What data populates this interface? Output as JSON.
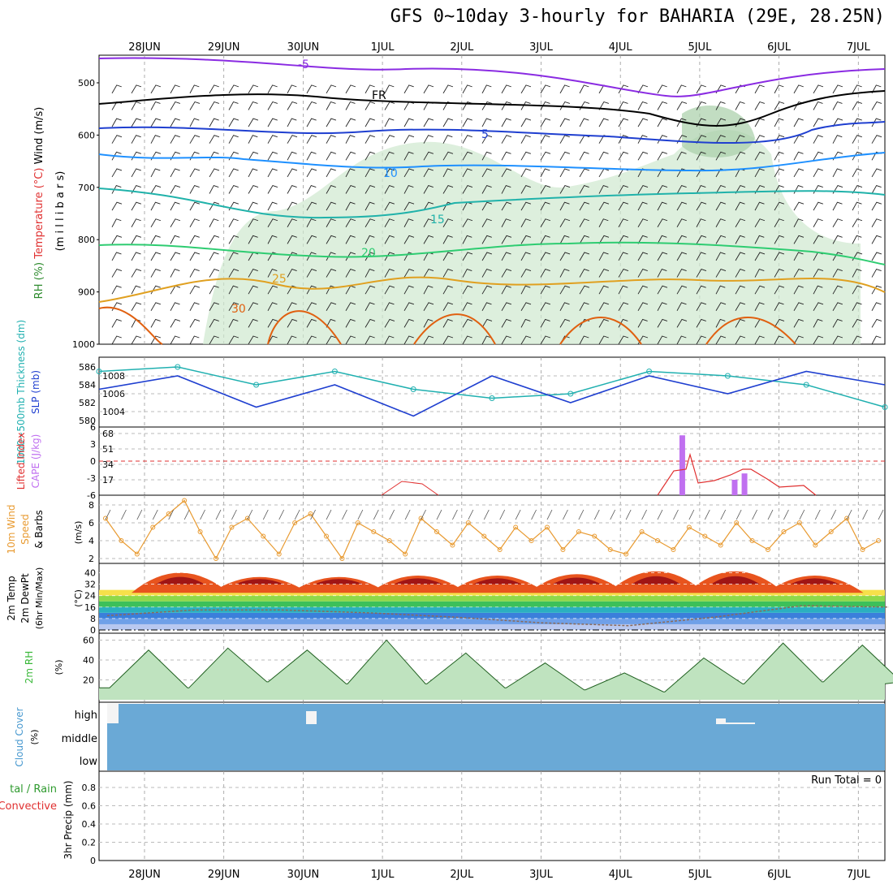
{
  "title": "GFS 0~10day 3-hourly for BAHARIA (29E, 28.25N)",
  "dates": [
    "28JUN",
    "29JUN",
    "30JUN",
    "1JUL",
    "2JUL",
    "3JUL",
    "4JUL",
    "5JUL",
    "6JUL",
    "7JUL"
  ],
  "colors": {
    "temp_m5": "#8a2be2",
    "temp_fr": "#000000",
    "temp_5": "#1f3fd0",
    "temp_10": "#1e90ff",
    "temp_15": "#20b2aa",
    "temp_20": "#2ecc71",
    "temp_25": "#e0a020",
    "temp_30": "#e06010",
    "rh_fill": "#cfe8cf",
    "thick": "#20b0b0",
    "slp": "#1f3fd0",
    "li": "#e03030",
    "cape": "#c070f0",
    "wind10": "#e89a30",
    "cloud": "#6aa9d6",
    "rh2m": "#3ab83a"
  },
  "panels": {
    "upper": {
      "ylabel_parts": [
        "RH (%)",
        "Temperature (°C)",
        "Wind (m/s)"
      ],
      "yaxis_title": "(m i l l i b a r s)",
      "levels": [
        500,
        600,
        700,
        800,
        900,
        1000
      ],
      "contour_labels": [
        "-5",
        "FR",
        "5",
        "10",
        "15",
        "20",
        "25",
        "30"
      ]
    },
    "thickness": {
      "ylabel_left": "1000~500mb Thickness (dm)",
      "ylabel_right": "SLP (mb)",
      "left_ticks": [
        580,
        582,
        584,
        586
      ],
      "right_ticks": [
        1004,
        1006,
        1008
      ]
    },
    "lifted": {
      "ylabel_left": "Lifted Index",
      "ylabel_right": "CAPE (J/kg)",
      "left_ticks": [
        "6",
        "3",
        "0",
        "-3",
        "-6"
      ],
      "right_ticks": [
        17,
        34,
        51,
        68
      ]
    },
    "wind10": {
      "ylabel": [
        "10m Wind",
        "Speed",
        "& Barbs"
      ],
      "unit": "(m/s)",
      "ticks": [
        2,
        4,
        6,
        8
      ]
    },
    "temp2m": {
      "ylabel": [
        "2m Temp",
        "2m DewPt",
        "(6hr Min/Max)"
      ],
      "unit": "(°C)",
      "ticks": [
        0,
        8,
        16,
        24,
        32,
        40
      ]
    },
    "rh2m": {
      "ylabel": "2m RH",
      "unit": "(%)",
      "ticks": [
        20,
        40,
        60
      ]
    },
    "cloud": {
      "ylabel": "Cloud Cover",
      "unit": "(%)",
      "levels": [
        "high",
        "middle",
        "low"
      ]
    },
    "precip": {
      "ylabel_top": "tal / Rain",
      "ylabel_bottom": "Convective",
      "ylabel": "3hr Precip (mm)",
      "ticks": [
        "0",
        "0.2",
        "0.4",
        "0.6",
        "0.8"
      ],
      "run_total": "Run Total = 0"
    }
  },
  "chart_data": [
    {
      "type": "line",
      "name": "thickness_slp",
      "x_hours": [
        0,
        24,
        48,
        72,
        96,
        120,
        144,
        168,
        192,
        216,
        240
      ],
      "series": [
        {
          "name": "1000~500mb Thickness (dm)",
          "values": [
            585.5,
            586,
            584,
            585.5,
            583.5,
            582.5,
            583,
            585.5,
            585,
            584,
            581.5
          ]
        },
        {
          "name": "SLP (mb)",
          "values": [
            1006.5,
            1008,
            1004.5,
            1007,
            1003.5,
            1008,
            1005,
            1008,
            1006,
            1008.5,
            1007
          ]
        }
      ]
    },
    {
      "type": "bar",
      "name": "cape",
      "x_hours": [
        178,
        194,
        197
      ],
      "values": [
        66,
        17,
        24
      ],
      "lifted_index_line": [
        6,
        4.5,
        6,
        2.5,
        1.3,
        0.6
      ]
    },
    {
      "type": "line",
      "name": "wind10m",
      "values": [
        6.5,
        4,
        2.5,
        5.5,
        7,
        8.5,
        5,
        2,
        5.5,
        6.5,
        4.5,
        2.5,
        6,
        7,
        4.5,
        2,
        6,
        5,
        4,
        2.5,
        6.5,
        5,
        3.5,
        6,
        4.5,
        3,
        5.5,
        4,
        5.5,
        3,
        5,
        4.5,
        3,
        2.5,
        5,
        4,
        3,
        5.5,
        4.5,
        3.5,
        6,
        4,
        3,
        5,
        6,
        3.5,
        5,
        6.5,
        3,
        4
      ]
    },
    {
      "type": "area",
      "name": "temp2m",
      "temp_max": [
        40,
        37,
        37,
        38,
        38,
        39,
        41,
        41,
        38
      ],
      "temp_min": [
        26,
        26,
        25,
        25,
        25,
        25,
        24,
        25,
        25,
        26
      ],
      "dewpoint": [
        10,
        14,
        14,
        12,
        9,
        5,
        3,
        9,
        17,
        16
      ]
    },
    {
      "type": "area",
      "name": "rh2m",
      "peaks": [
        50,
        52,
        50,
        60,
        47,
        37,
        27,
        42,
        57,
        55
      ],
      "troughs": [
        12,
        12,
        18,
        16,
        16,
        12,
        10,
        8,
        16,
        18
      ]
    },
    {
      "type": "bar",
      "name": "precip",
      "values": [],
      "ylim": [
        0,
        0.9
      ]
    }
  ]
}
